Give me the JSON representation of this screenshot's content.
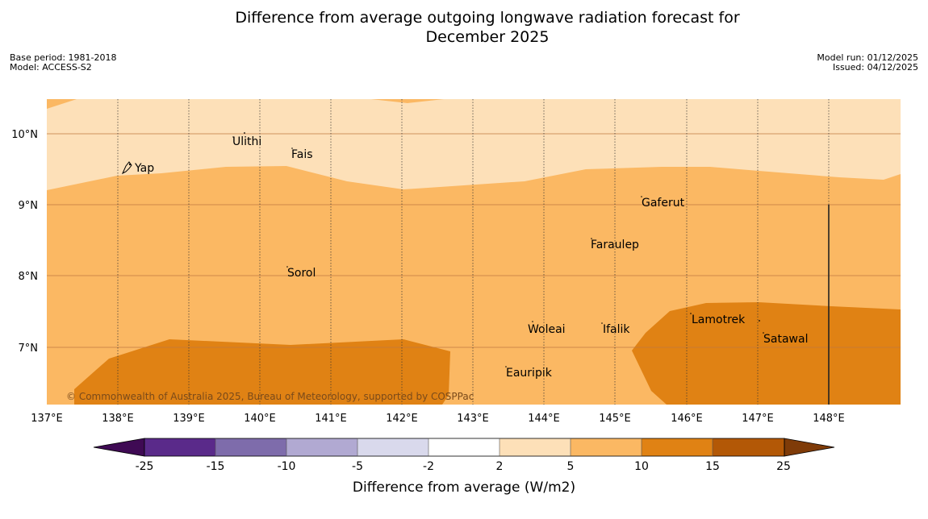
{
  "title": {
    "line1": "Difference from average outgoing longwave radiation forecast for",
    "line2": "December 2025"
  },
  "meta_left": {
    "base_period": "Base period: 1981-2018",
    "model": "Model: ACCESS-S2"
  },
  "meta_right": {
    "model_run": "Model run: 01/12/2025",
    "issued": "Issued: 04/12/2025"
  },
  "map": {
    "lon_range": [
      137,
      149
    ],
    "lat_range": [
      6.2,
      10.5
    ],
    "lon_ticks": [
      "137°E",
      "138°E",
      "139°E",
      "140°E",
      "141°E",
      "142°E",
      "143°E",
      "144°E",
      "145°E",
      "146°E",
      "147°E",
      "148°E"
    ],
    "lat_ticks": [
      "10°N",
      "9°N",
      "8°N",
      "7°N"
    ],
    "places": [
      {
        "name": "Yap",
        "lon": 138.25,
        "lat": 9.52
      },
      {
        "name": "Ulithi",
        "lon": 139.6,
        "lat": 9.88
      },
      {
        "name": "Fais",
        "lon": 140.45,
        "lat": 9.72
      },
      {
        "name": "Gaferut",
        "lon": 145.38,
        "lat": 9.02
      },
      {
        "name": "Faraulep",
        "lon": 144.68,
        "lat": 8.44
      },
      {
        "name": "Sorol",
        "lon": 140.38,
        "lat": 8.05
      },
      {
        "name": "Lamotrek",
        "lon": 146.05,
        "lat": 7.4
      },
      {
        "name": "Woleai",
        "lon": 143.78,
        "lat": 7.28
      },
      {
        "name": "Ifalik",
        "lon": 144.75,
        "lat": 7.28
      },
      {
        "name": "Satawal",
        "lon": 147.03,
        "lat": 7.13
      },
      {
        "name": "Eauripik",
        "lon": 143.45,
        "lat": 6.65
      }
    ],
    "copyright": "© Commonwealth of Australia 2025, Bureau of Meteorology, supported by COSPPac"
  },
  "colorbar": {
    "label": "Difference from average (W/m2)",
    "ticks": [
      "-25",
      "-15",
      "-10",
      "-5",
      "-2",
      "2",
      "5",
      "10",
      "15",
      "25"
    ],
    "colors": [
      "#3f0a54",
      "#5a2a8a",
      "#7e6cab",
      "#b1a9d2",
      "#d9d9ec",
      "#ffffff",
      "#fde0b8",
      "#fbb863",
      "#e08214",
      "#b35806",
      "#7f3b08"
    ],
    "extend_low_color": "#3f0a54",
    "extend_high_color": "#7f3b08"
  },
  "colors": {
    "band_2_5": "#fde0b8",
    "band_5_10": "#fbb863",
    "band_10_15": "#e08214"
  }
}
